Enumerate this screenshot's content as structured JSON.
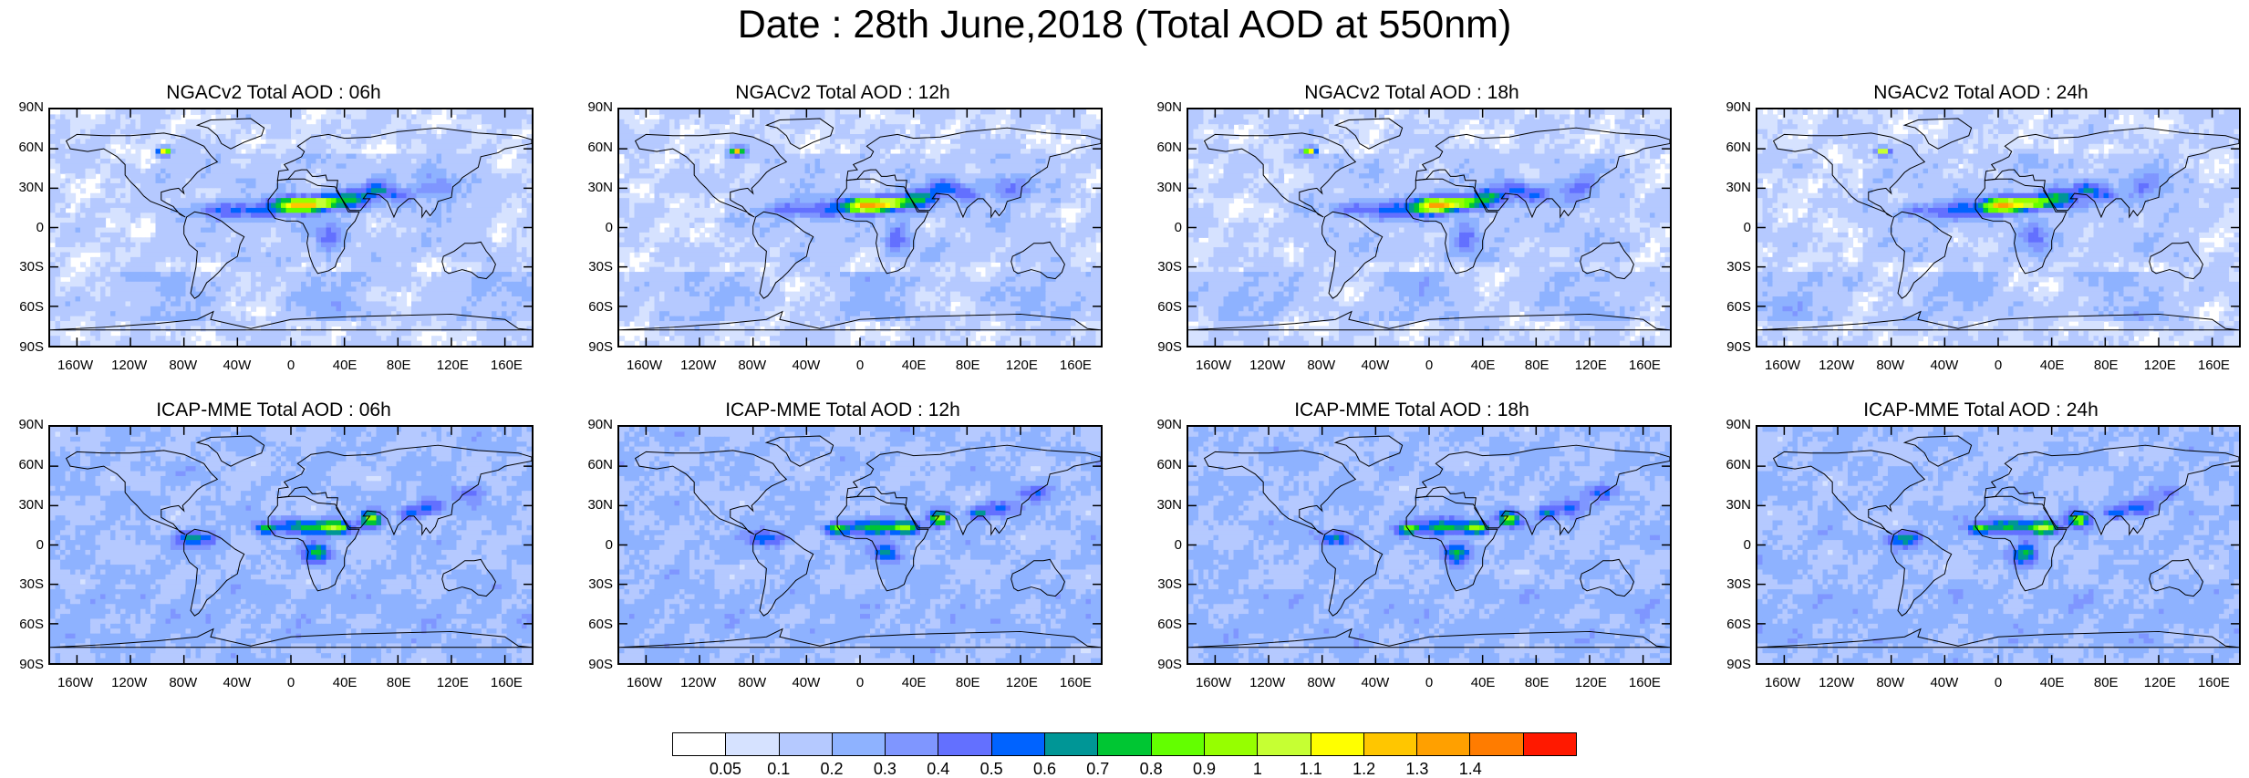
{
  "title": "Date : 28th June,2018 (Total AOD at 550nm)",
  "lat_labels": [
    "90N",
    "60N",
    "30N",
    "0",
    "30S",
    "60S",
    "90S"
  ],
  "lon_labels": [
    "160W",
    "120W",
    "80W",
    "40W",
    "0",
    "40E",
    "80E",
    "120E",
    "160E"
  ],
  "panels": [
    {
      "title": "NGACv2 Total AOD : 06h"
    },
    {
      "title": "NGACv2 Total AOD : 12h"
    },
    {
      "title": "NGACv2 Total AOD : 18h"
    },
    {
      "title": "NGACv2 Total AOD : 24h"
    },
    {
      "title": "ICAP-MME Total AOD : 06h"
    },
    {
      "title": "ICAP-MME Total AOD : 12h"
    },
    {
      "title": "ICAP-MME Total AOD : 18h"
    },
    {
      "title": "ICAP-MME Total AOD : 24h"
    }
  ],
  "colorbar": {
    "labels": [
      "0.05",
      "0.1",
      "0.2",
      "0.3",
      "0.4",
      "0.5",
      "0.6",
      "0.7",
      "0.8",
      "0.9",
      "1",
      "1.1",
      "1.2",
      "1.3",
      "1.4"
    ],
    "colors": [
      "#ffffff",
      "#d6e2ff",
      "#b5c9ff",
      "#8eb2ff",
      "#7f96ff",
      "#6370ff",
      "#0063ff",
      "#009696",
      "#00c633",
      "#63ff00",
      "#96ff00",
      "#c6ff33",
      "#ffff00",
      "#ffc600",
      "#ffa000",
      "#ff7c00",
      "#ff1900"
    ]
  },
  "chart_data": {
    "type": "heatmap",
    "title": "Date : 28th June,2018 (Total AOD at 550nm)",
    "lat_range": [
      "90S",
      "90N"
    ],
    "lon_range": [
      "180W",
      "180E"
    ],
    "panels": [
      "NGACv2 Total AOD : 06h",
      "NGACv2 Total AOD : 12h",
      "NGACv2 Total AOD : 18h",
      "NGACv2 Total AOD : 24h",
      "ICAP-MME Total AOD : 06h",
      "ICAP-MME Total AOD : 12h",
      "ICAP-MME Total AOD : 18h",
      "ICAP-MME Total AOD : 24h"
    ],
    "levels": [
      0.05,
      0.1,
      0.2,
      0.3,
      0.4,
      0.5,
      0.6,
      0.7,
      0.8,
      0.9,
      1,
      1.1,
      1.2,
      1.3,
      1.4
    ]
  }
}
